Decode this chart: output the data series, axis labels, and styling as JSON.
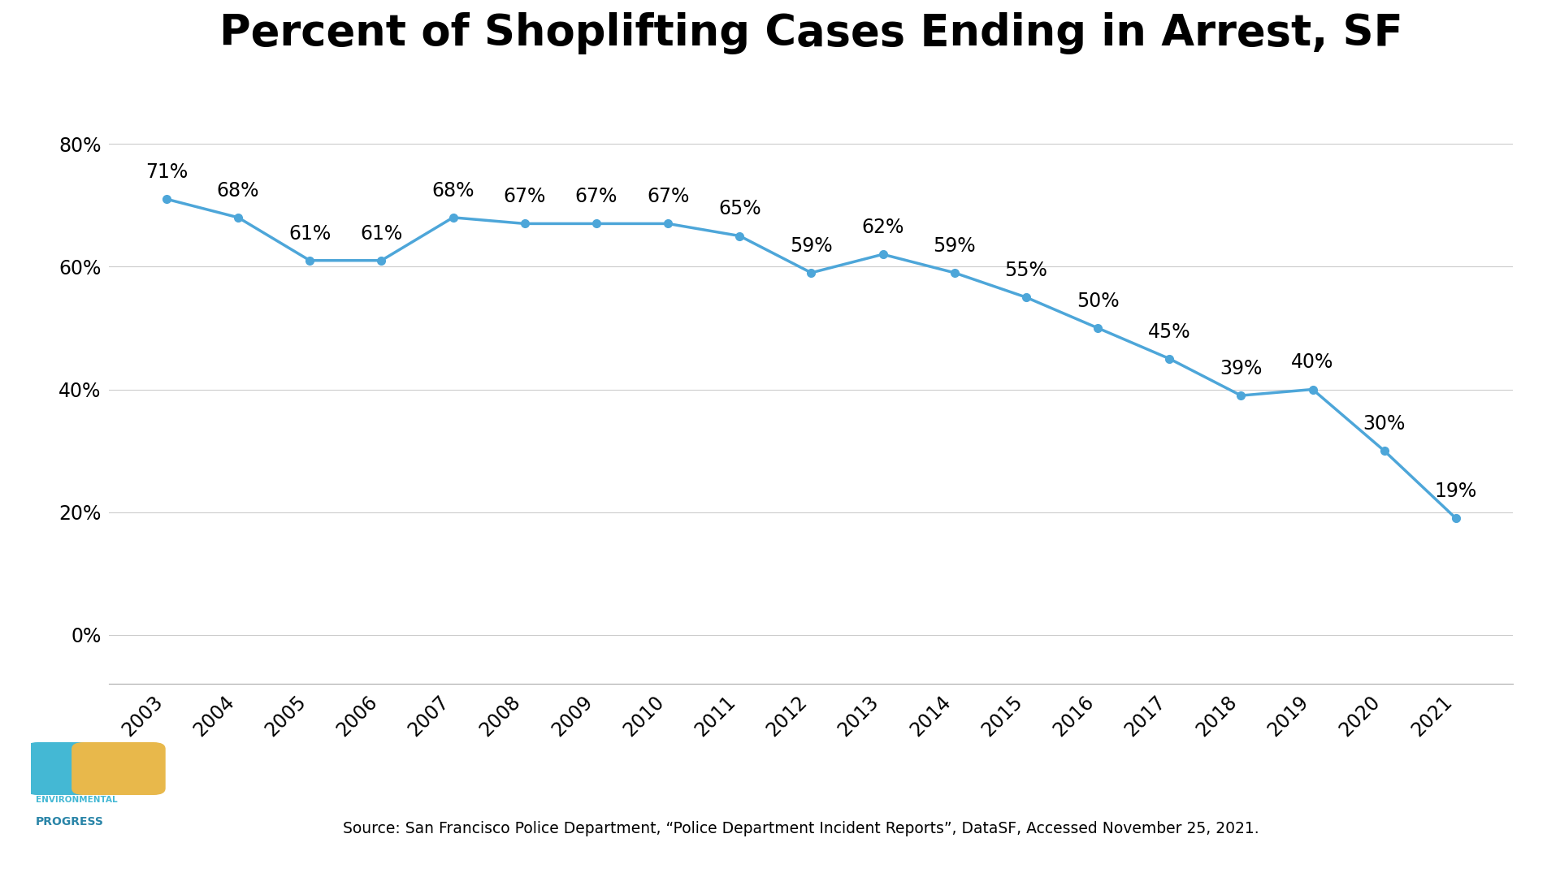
{
  "title": "Percent of Shoplifting Cases Ending in Arrest, SF",
  "years": [
    2003,
    2004,
    2005,
    2006,
    2007,
    2008,
    2009,
    2010,
    2011,
    2012,
    2013,
    2014,
    2015,
    2016,
    2017,
    2018,
    2019,
    2020,
    2021
  ],
  "values": [
    71,
    68,
    61,
    61,
    68,
    67,
    67,
    67,
    65,
    59,
    62,
    59,
    55,
    50,
    45,
    39,
    40,
    30,
    19
  ],
  "line_color": "#4da6d9",
  "marker_color": "#4da6d9",
  "background_color": "#ffffff",
  "title_fontsize": 38,
  "label_fontsize": 17,
  "tick_fontsize": 17,
  "source_text": "Source: San Francisco Police Department, “Police Department Incident Reports”, DataSF, Accessed November 25, 2021.",
  "yticks": [
    0,
    20,
    40,
    60,
    80
  ],
  "ylim": [
    -8,
    92
  ],
  "ep_blue": "#44b8d4",
  "ep_yellow": "#e8b84b",
  "ep_text_blue": "#44b8d4",
  "ep_text_dark": "#2a7fa5"
}
